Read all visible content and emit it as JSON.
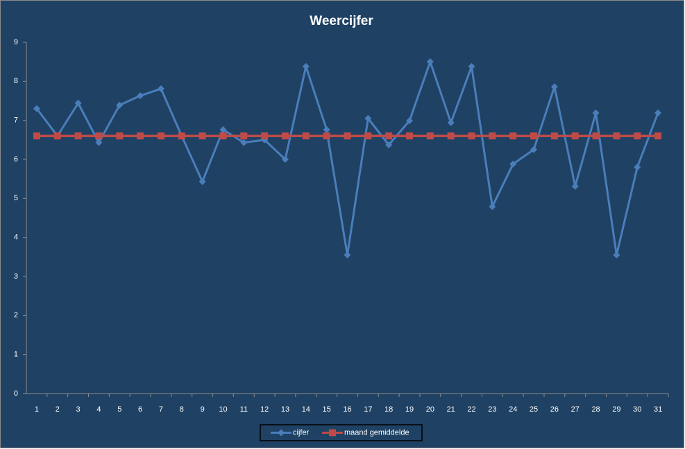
{
  "chart_data": {
    "type": "line",
    "title": "Weercijfer",
    "categories": [
      "1",
      "2",
      "3",
      "4",
      "5",
      "6",
      "7",
      "8",
      "9",
      "10",
      "11",
      "12",
      "13",
      "14",
      "15",
      "16",
      "17",
      "18",
      "19",
      "20",
      "21",
      "22",
      "23",
      "24",
      "25",
      "26",
      "27",
      "28",
      "29",
      "30",
      "31"
    ],
    "series": [
      {
        "name": "cijfer",
        "color": "#4a7ebb",
        "marker": "diamond",
        "values": [
          7.3,
          6.6,
          7.44,
          6.43,
          7.39,
          7.63,
          7.81,
          6.6,
          5.43,
          6.76,
          6.43,
          6.5,
          6.0,
          8.38,
          6.76,
          3.55,
          7.05,
          6.37,
          6.99,
          8.5,
          6.94,
          8.38,
          4.79,
          5.88,
          6.25,
          7.86,
          5.31,
          7.19,
          3.55,
          5.8,
          7.19
        ]
      },
      {
        "name": "maand gemiddelde",
        "color": "#be4b48",
        "marker": "square",
        "values": [
          6.6,
          6.6,
          6.6,
          6.6,
          6.6,
          6.6,
          6.6,
          6.6,
          6.6,
          6.6,
          6.6,
          6.6,
          6.6,
          6.6,
          6.6,
          6.6,
          6.6,
          6.6,
          6.6,
          6.6,
          6.6,
          6.6,
          6.6,
          6.6,
          6.6,
          6.6,
          6.6,
          6.6,
          6.6,
          6.6,
          6.6
        ]
      }
    ],
    "ylim": [
      0,
      9
    ],
    "yticks": [
      0,
      1,
      2,
      3,
      4,
      5,
      6,
      7,
      8,
      9
    ],
    "grid": false,
    "legend": "bottom"
  }
}
